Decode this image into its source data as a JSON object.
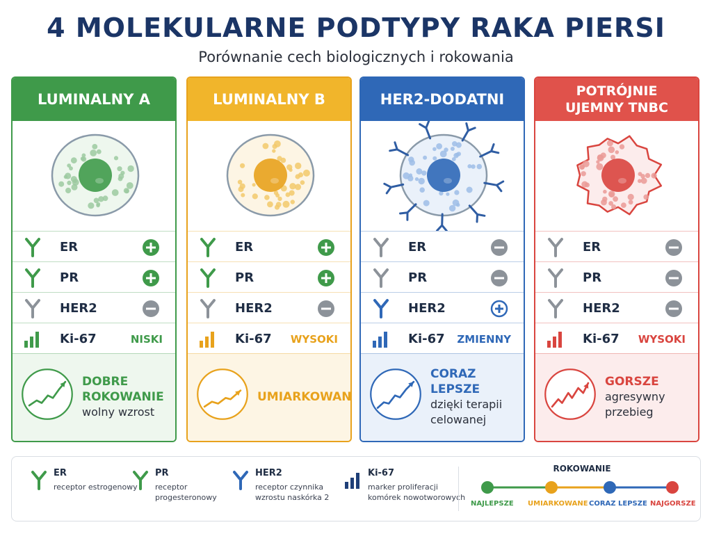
{
  "title": "4 MOLEKULARNE PODTYPY RAKA PIERSI",
  "subtitle": "Porównanie cech biologicznych i rokowania",
  "cards": [
    {
      "name": "LUMINALNY A",
      "color": "#3f9a4a",
      "light": "#eef7ee",
      "markers": {
        "er": "+",
        "pr": "+",
        "her2": "−",
        "ki67": "NISKI"
      },
      "marker_labels": [
        "ER",
        "PR",
        "HER2",
        "Ki-67"
      ],
      "prognosis": {
        "title": "DOBRE ROKOWANIE",
        "desc": "wolny wzrost"
      }
    },
    {
      "name": "LUMINALNY B",
      "color": "#e8a21c",
      "light": "#fdf5e4",
      "markers": {
        "er": "+",
        "pr": "+",
        "her2": "−",
        "ki67": "WYSOKI"
      },
      "marker_labels": [
        "ER",
        "PR",
        "HER2",
        "Ki-67"
      ],
      "prognosis": {
        "title": "UMIARKOWANE",
        "desc": ""
      }
    },
    {
      "name": "HER2-DODATNI",
      "color": "#2f68b7",
      "light": "#eaf1fa",
      "markers": {
        "er": "−",
        "pr": "−",
        "her2": "+",
        "ki67": "ZMIENNY"
      },
      "marker_labels": [
        "ER",
        "PR",
        "HER2",
        "Ki-67"
      ],
      "prognosis": {
        "title": "CORAZ LEPSZE",
        "desc": "dzięki terapii celowanej"
      }
    },
    {
      "name": "POTRÓJNIE UJEMNY TNBC",
      "color": "#d9453f",
      "light": "#fcecec",
      "markers": {
        "er": "−",
        "pr": "−",
        "her2": "−",
        "ki67": "WYSOKI"
      },
      "marker_labels": [
        "ER",
        "PR",
        "HER2",
        "Ki-67"
      ],
      "prognosis": {
        "title": "GORSZE",
        "desc": "agresywny przebieg"
      }
    }
  ],
  "legend": {
    "items": [
      {
        "icon": "receptor-green-icon",
        "title": "ER",
        "desc": "receptor estrogenowy"
      },
      {
        "icon": "receptor-green-icon",
        "title": "PR",
        "desc": "receptor progesteronowy"
      },
      {
        "icon": "receptor-blue-icon",
        "title": "HER2",
        "desc": "receptor czynnika wzrostu naskórka 2"
      },
      {
        "icon": "bar-chart-icon",
        "title": "Ki-67",
        "desc": "marker proliferacji komórek nowotworowych"
      }
    ],
    "scale_title": "ROKOWANIE",
    "scale": [
      {
        "label": "NAJLEPSZE",
        "color": "#3f9a4a"
      },
      {
        "label": "UMIARKOWANE",
        "color": "#e8a21c"
      },
      {
        "label": "CORAZ LEPSZE",
        "color": "#2f68b7"
      },
      {
        "label": "NAJGORSZE",
        "color": "#d9453f"
      }
    ]
  }
}
